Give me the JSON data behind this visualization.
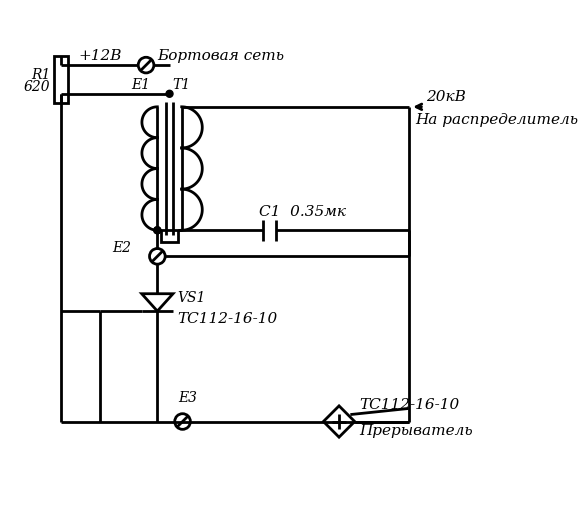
{
  "bg_color": "#ffffff",
  "line_color": "#000000",
  "line_width": 2.0,
  "font_size": 11,
  "labels": {
    "plus12": "+12В",
    "bortovaya": "Бортовая сеть",
    "E1": "E1",
    "T1": "T1",
    "kV20": "20кВ",
    "raspredelitel": "На распределитель",
    "R1": "R1",
    "R1val": "620",
    "C1": "C1  0.35мк",
    "E2": "E2",
    "VS1": "VS1",
    "TC": "TC112-16-10",
    "preryv": "Прерыватель",
    "E3": "E3"
  }
}
